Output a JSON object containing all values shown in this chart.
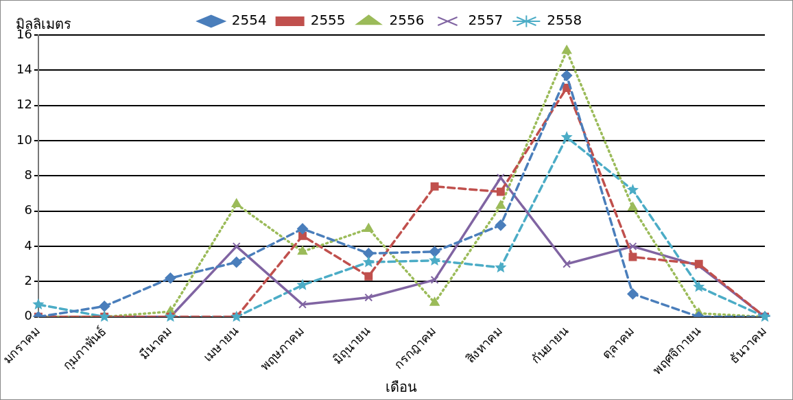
{
  "chart_data": {
    "type": "line",
    "ylabel": "มิลลิเมตร",
    "xlabel": "เดือน",
    "categories": [
      "มกราคม",
      "กุมภาพันธ์",
      "มีนาคม",
      "เมษายน",
      "พฤษภาคม",
      "มิถุนายน",
      "กรกฎาคม",
      "สิงหาคม",
      "กันยายน",
      "ตุลาคม",
      "พฤศจิกายน",
      "ธันวาคม"
    ],
    "series": [
      {
        "name": "2554",
        "color": "#4a7ebb",
        "marker": "diamond",
        "line_style": "dashed",
        "values": [
          0,
          0.6,
          2.2,
          3.1,
          5.0,
          3.6,
          3.7,
          5.2,
          13.7,
          1.3,
          0,
          0
        ]
      },
      {
        "name": "2555",
        "color": "#c0504d",
        "marker": "square",
        "line_style": "dashed",
        "values": [
          0,
          0,
          0,
          0,
          4.6,
          2.3,
          7.4,
          7.1,
          13.0,
          3.4,
          3.0,
          0
        ]
      },
      {
        "name": "2556",
        "color": "#9bbb59",
        "marker": "triangle",
        "line_style": "dotted",
        "values": [
          0,
          0,
          0.3,
          6.4,
          3.7,
          5.0,
          0.8,
          6.3,
          15.1,
          6.2,
          0.2,
          0
        ]
      },
      {
        "name": "2557",
        "color": "#8064a2",
        "marker": "cross",
        "line_style": "solid",
        "values": [
          0,
          0,
          0,
          4.0,
          0.7,
          1.1,
          2.1,
          7.9,
          3.0,
          4.0,
          2.9,
          0
        ]
      },
      {
        "name": "2558",
        "color": "#4bacc6",
        "marker": "star",
        "line_style": "dashed",
        "values": [
          0.7,
          0,
          0,
          0,
          1.8,
          3.1,
          3.2,
          2.8,
          10.2,
          7.2,
          1.7,
          0
        ]
      }
    ],
    "ylim": [
      0,
      16
    ],
    "yticks": [
      0,
      2,
      4,
      6,
      8,
      10,
      12,
      14,
      16
    ],
    "grid": "y",
    "legend": "top"
  }
}
